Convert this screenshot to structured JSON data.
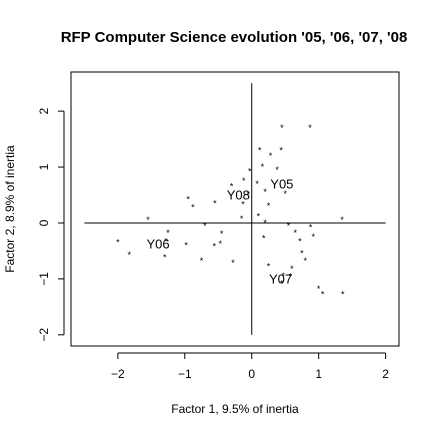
{
  "chart_data": {
    "type": "scatter",
    "title": "RFP Computer Science evolution '05, '06, '07, '08",
    "xlabel": "Factor 1, 9.5% of inertia",
    "ylabel": "Factor 2, 8.9% of inertia",
    "xlim": [
      -2.7,
      2.2
    ],
    "ylim": [
      -2.2,
      2.7
    ],
    "x_ticks": [
      -2,
      -1,
      0,
      1,
      2
    ],
    "x_tick_labels": [
      "−2",
      "−1",
      "0",
      "1",
      "2"
    ],
    "y_ticks": [
      -2,
      -1,
      0,
      1,
      2
    ],
    "y_tick_labels": [
      "−2",
      "−1",
      "0",
      "1",
      "2"
    ],
    "grid": false,
    "reference_lines": {
      "x": 0,
      "y": 0,
      "x_extent": [
        -2.5,
        2.0
      ],
      "y_extent": [
        -2.0,
        2.5
      ]
    },
    "marker": "*",
    "points": [
      {
        "x": 0.45,
        "y": 1.7
      },
      {
        "x": 0.87,
        "y": 1.7
      },
      {
        "x": 0.12,
        "y": 1.3
      },
      {
        "x": 0.28,
        "y": 1.2
      },
      {
        "x": 0.44,
        "y": 1.3
      },
      {
        "x": 0.16,
        "y": 1.0
      },
      {
        "x": 0.38,
        "y": 0.95
      },
      {
        "x": -0.03,
        "y": 0.92
      },
      {
        "x": -0.12,
        "y": 0.75
      },
      {
        "x": -0.3,
        "y": 0.65
      },
      {
        "x": 0.08,
        "y": 0.7
      },
      {
        "x": 0.2,
        "y": 0.55
      },
      {
        "x": -0.05,
        "y": 0.5
      },
      {
        "x": 0.5,
        "y": 0.52
      },
      {
        "x": -0.95,
        "y": 0.42
      },
      {
        "x": -0.88,
        "y": 0.28
      },
      {
        "x": -0.55,
        "y": 0.35
      },
      {
        "x": -0.13,
        "y": 0.33
      },
      {
        "x": 0.25,
        "y": 0.3
      },
      {
        "x": -0.15,
        "y": 0.07
      },
      {
        "x": 0.1,
        "y": 0.12
      },
      {
        "x": 0.2,
        "y": 0.0
      },
      {
        "x": 1.35,
        "y": 0.05
      },
      {
        "x": -1.55,
        "y": 0.05
      },
      {
        "x": -0.7,
        "y": -0.05
      },
      {
        "x": 0.55,
        "y": -0.05
      },
      {
        "x": 0.88,
        "y": -0.08
      },
      {
        "x": 0.65,
        "y": -0.18
      },
      {
        "x": 0.18,
        "y": -0.28
      },
      {
        "x": 0.72,
        "y": -0.33
      },
      {
        "x": 0.92,
        "y": -0.25
      },
      {
        "x": -1.25,
        "y": -0.18
      },
      {
        "x": -0.45,
        "y": -0.2
      },
      {
        "x": -0.98,
        "y": -0.4
      },
      {
        "x": -2.0,
        "y": -0.35
      },
      {
        "x": -1.28,
        "y": -0.33
      },
      {
        "x": -0.56,
        "y": -0.42
      },
      {
        "x": -0.47,
        "y": -0.38
      },
      {
        "x": -1.83,
        "y": -0.57
      },
      {
        "x": -1.3,
        "y": -0.62
      },
      {
        "x": 0.75,
        "y": -0.55
      },
      {
        "x": -0.75,
        "y": -0.68
      },
      {
        "x": -0.28,
        "y": -0.72
      },
      {
        "x": 0.8,
        "y": -0.68
      },
      {
        "x": 0.25,
        "y": -0.78
      },
      {
        "x": 0.6,
        "y": -0.82
      },
      {
        "x": 0.47,
        "y": -0.95
      },
      {
        "x": 0.58,
        "y": -0.96
      },
      {
        "x": 0.45,
        "y": -1.08
      },
      {
        "x": 1.0,
        "y": -1.18
      },
      {
        "x": 1.06,
        "y": -1.28
      },
      {
        "x": 1.36,
        "y": -1.28
      }
    ],
    "annotations": [
      {
        "text": "Y05",
        "x": 0.45,
        "y": 0.7
      },
      {
        "text": "Y06",
        "x": -1.4,
        "y": -0.38
      },
      {
        "text": "Y07",
        "x": 0.43,
        "y": -1.0
      },
      {
        "text": "Y08",
        "x": -0.2,
        "y": 0.5
      }
    ]
  }
}
